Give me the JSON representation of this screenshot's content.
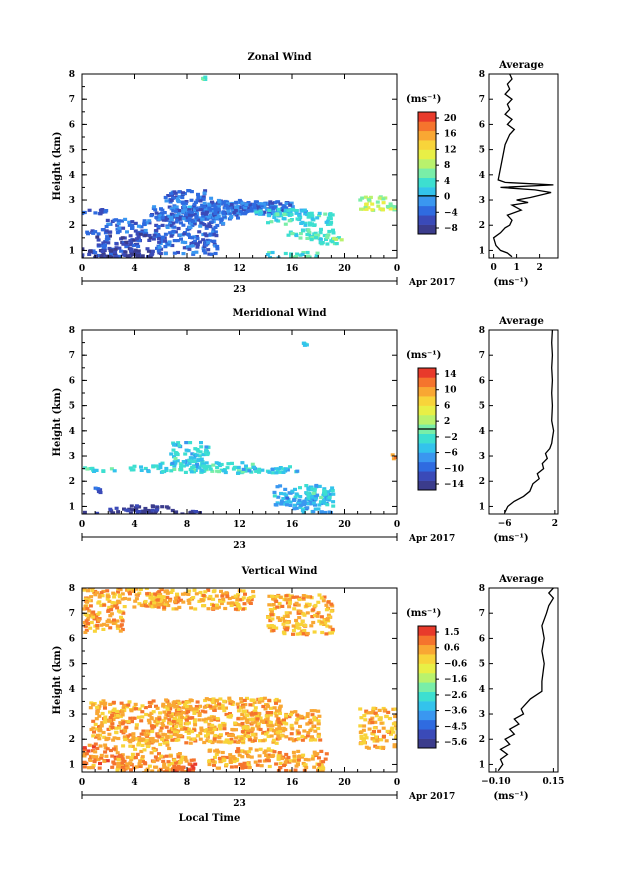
{
  "chart_data": [
    {
      "type": "heatmap",
      "title": "Zonal Wind",
      "ylabel": "Height (km)",
      "xlabel": "",
      "date_label": "23",
      "month_label": "Apr 2017",
      "x_ticks": [
        "0",
        "4",
        "8",
        "12",
        "16",
        "20",
        "0"
      ],
      "x_range": [
        0,
        24
      ],
      "y_ticks": [
        "1",
        "2",
        "3",
        "4",
        "5",
        "6",
        "7",
        "8"
      ],
      "y_range": [
        0.7,
        8.0
      ],
      "colorbar": {
        "unit": "(ms⁻¹)",
        "ticks": [
          "20",
          "16",
          "12",
          "8",
          "4",
          "0",
          "−4",
          "−8"
        ],
        "range": [
          -10,
          22
        ],
        "zero_line": 0
      },
      "cells": [
        [
          0.5,
          2.6,
          -5,
          1.2,
          0.12
        ],
        [
          0.9,
          1.8,
          -5,
          1.2,
          0.1
        ],
        [
          2.5,
          1.2,
          -6,
          1.8,
          0.45
        ],
        [
          2.5,
          0.85,
          -8,
          2.8,
          0.3
        ],
        [
          3.2,
          2.0,
          -4,
          1.8,
          0.3
        ],
        [
          5.0,
          1.6,
          -6,
          1.5,
          0.15
        ],
        [
          7.5,
          2.3,
          -5,
          2.0,
          0.25
        ],
        [
          7.8,
          1.5,
          -4,
          2.5,
          0.6
        ],
        [
          8.0,
          2.85,
          -4,
          1.8,
          0.6
        ],
        [
          8.5,
          2.55,
          -3,
          3.5,
          0.25
        ],
        [
          9.5,
          2.3,
          -4,
          1.5,
          0.2
        ],
        [
          10.0,
          2.8,
          -3,
          3.0,
          0.25
        ],
        [
          11.5,
          2.7,
          -5,
          2.5,
          0.2
        ],
        [
          12.5,
          2.75,
          -4,
          3.0,
          0.25
        ],
        [
          14.0,
          2.8,
          -3,
          2.0,
          0.2
        ],
        [
          15.0,
          2.5,
          2,
          2.0,
          0.2
        ],
        [
          16.5,
          2.3,
          3,
          2.5,
          0.25
        ],
        [
          17.5,
          1.7,
          4,
          2.0,
          0.2
        ],
        [
          18.5,
          1.5,
          5,
          1.2,
          0.2
        ],
        [
          16.0,
          0.85,
          4,
          2.0,
          0.15
        ],
        [
          22.5,
          2.9,
          8,
          1.5,
          0.3
        ],
        [
          9.2,
          7.9,
          5,
          0.2,
          0.05
        ]
      ],
      "profile": {
        "title": "Average",
        "xlabel": "(ms⁻¹)",
        "x_ticks": [
          "0",
          "1",
          "2"
        ],
        "x_range": [
          -0.2,
          2.8
        ],
        "y_range": [
          0.7,
          8.0
        ],
        "points": [
          [
            0.8,
            0.75
          ],
          [
            0.6,
            0.9
          ],
          [
            0.3,
            1.0
          ],
          [
            0.1,
            1.2
          ],
          [
            0.0,
            1.5
          ],
          [
            0.3,
            1.7
          ],
          [
            0.5,
            1.9
          ],
          [
            0.7,
            2.0
          ],
          [
            0.8,
            2.2
          ],
          [
            0.6,
            2.4
          ],
          [
            1.2,
            2.6
          ],
          [
            0.8,
            2.8
          ],
          [
            1.5,
            2.9
          ],
          [
            1.0,
            3.0
          ],
          [
            1.6,
            3.1
          ],
          [
            2.5,
            3.3
          ],
          [
            1.8,
            3.4
          ],
          [
            0.3,
            3.5
          ],
          [
            2.6,
            3.6
          ],
          [
            0.5,
            3.7
          ],
          [
            0.2,
            3.8
          ],
          [
            0.5,
            5.2
          ],
          [
            0.7,
            5.6
          ],
          [
            0.9,
            5.8
          ],
          [
            0.6,
            6.0
          ],
          [
            0.8,
            6.2
          ],
          [
            0.5,
            6.4
          ],
          [
            0.7,
            6.6
          ],
          [
            0.6,
            6.8
          ],
          [
            0.8,
            7.0
          ],
          [
            0.5,
            7.2
          ],
          [
            0.7,
            7.4
          ],
          [
            0.6,
            7.6
          ],
          [
            0.8,
            7.8
          ],
          [
            0.7,
            8.0
          ]
        ]
      }
    },
    {
      "type": "heatmap",
      "title": "Meridional Wind",
      "ylabel": "Height (km)",
      "xlabel": "",
      "date_label": "23",
      "month_label": "Apr 2017",
      "x_ticks": [
        "0",
        "4",
        "8",
        "12",
        "16",
        "20",
        "0"
      ],
      "x_range": [
        0,
        24
      ],
      "y_ticks": [
        "1",
        "2",
        "3",
        "4",
        "5",
        "6",
        "7",
        "8"
      ],
      "y_range": [
        0.7,
        8.0
      ],
      "colorbar": {
        "unit": "(ms⁻¹)",
        "ticks": [
          "14",
          "10",
          "6",
          "2",
          "−2",
          "−6",
          "−10",
          "−14"
        ],
        "range": [
          -16,
          16
        ],
        "zero_line": 0
      },
      "cells": [
        [
          1.0,
          2.5,
          -3,
          1.5,
          0.1
        ],
        [
          4.5,
          2.55,
          -4,
          1.0,
          0.12
        ],
        [
          7.5,
          2.6,
          -3,
          2.0,
          0.2
        ],
        [
          8.0,
          3.1,
          -4,
          1.5,
          0.5
        ],
        [
          10.5,
          2.6,
          -3,
          2.5,
          0.2
        ],
        [
          14.0,
          2.5,
          -4,
          2.5,
          0.15
        ],
        [
          16.5,
          1.5,
          -6,
          2.0,
          0.4
        ],
        [
          17.5,
          1.2,
          -6,
          1.5,
          0.4
        ],
        [
          18.0,
          1.6,
          -3,
          1.0,
          0.2
        ],
        [
          4.5,
          0.95,
          -14,
          2.5,
          0.15
        ],
        [
          6.5,
          0.8,
          -14,
          2.5,
          0.12
        ],
        [
          0.5,
          0.75,
          -14,
          1.0,
          0.08
        ],
        [
          1.2,
          1.7,
          -10,
          0.5,
          0.1
        ],
        [
          23.8,
          3.0,
          10,
          0.3,
          0.15
        ],
        [
          16.8,
          7.5,
          -4,
          0.2,
          0.05
        ]
      ],
      "profile": {
        "title": "Average",
        "xlabel": "(ms⁻¹)",
        "x_ticks": [
          "−6",
          "2"
        ],
        "x_range": [
          -8.5,
          2.5
        ],
        "y_range": [
          0.7,
          8.0
        ],
        "points": [
          [
            -6.0,
            0.75
          ],
          [
            -5.5,
            1.0
          ],
          [
            -4.5,
            1.2
          ],
          [
            -3.0,
            1.4
          ],
          [
            -2.0,
            1.6
          ],
          [
            -1.5,
            1.9
          ],
          [
            -0.5,
            2.1
          ],
          [
            -0.8,
            2.3
          ],
          [
            0.2,
            2.5
          ],
          [
            0.0,
            2.7
          ],
          [
            0.8,
            2.9
          ],
          [
            0.5,
            3.1
          ],
          [
            1.2,
            3.3
          ],
          [
            1.5,
            3.5
          ],
          [
            1.6,
            3.7
          ],
          [
            1.8,
            4.0
          ],
          [
            1.5,
            4.4
          ],
          [
            1.6,
            5.0
          ],
          [
            1.5,
            5.5
          ],
          [
            1.6,
            6.0
          ],
          [
            1.5,
            6.5
          ],
          [
            1.6,
            7.0
          ],
          [
            1.5,
            7.5
          ],
          [
            1.6,
            8.0
          ]
        ]
      }
    },
    {
      "type": "heatmap",
      "title": "Vertical Wind",
      "ylabel": "Height (km)",
      "xlabel": "Local Time",
      "date_label": "23",
      "month_label": "Apr 2017",
      "x_ticks": [
        "0",
        "4",
        "8",
        "12",
        "16",
        "20",
        "0"
      ],
      "x_range": [
        0,
        24
      ],
      "y_ticks": [
        "1",
        "2",
        "3",
        "4",
        "5",
        "6",
        "7",
        "8"
      ],
      "y_range": [
        0.7,
        8.0
      ],
      "colorbar": {
        "unit": "(ms⁻¹)",
        "ticks": [
          "1.5",
          "0.6",
          "−0.6",
          "−1.6",
          "−2.6",
          "−3.6",
          "−4.5",
          "−5.6"
        ],
        "range": [
          -6.0,
          2.0
        ],
        "zero_line": null
      },
      "cells": [
        [
          3.0,
          7.7,
          0.3,
          3.0,
          0.4
        ],
        [
          9.0,
          7.6,
          0.3,
          4.0,
          0.4
        ],
        [
          1.5,
          6.8,
          0.5,
          1.5,
          0.5
        ],
        [
          16.5,
          7.0,
          0.3,
          2.5,
          0.8
        ],
        [
          4.0,
          2.8,
          0.5,
          3.5,
          0.8
        ],
        [
          10.5,
          2.8,
          0.3,
          4.5,
          0.9
        ],
        [
          15.0,
          2.6,
          0.4,
          3.0,
          0.6
        ],
        [
          22.5,
          2.5,
          0.3,
          1.5,
          0.8
        ],
        [
          1.5,
          1.4,
          0.8,
          1.5,
          0.5
        ],
        [
          5.5,
          1.1,
          0.6,
          3.0,
          0.4
        ],
        [
          12.0,
          1.3,
          0.4,
          2.5,
          0.4
        ],
        [
          16.5,
          1.2,
          0.5,
          2.0,
          0.4
        ],
        [
          7.0,
          0.85,
          1.2,
          1.2,
          0.15
        ],
        [
          8.2,
          1.0,
          1.4,
          0.3,
          0.2
        ],
        [
          5.0,
          1.8,
          0.2,
          1.5,
          0.3
        ]
      ],
      "profile": {
        "title": "Average",
        "xlabel": "(ms⁻¹)",
        "x_ticks": [
          "−0.10",
          "0.15"
        ],
        "x_range": [
          -0.13,
          0.17
        ],
        "y_range": [
          0.7,
          8.0
        ],
        "points": [
          [
            -0.09,
            0.75
          ],
          [
            -0.07,
            1.0
          ],
          [
            -0.08,
            1.2
          ],
          [
            -0.05,
            1.4
          ],
          [
            -0.08,
            1.6
          ],
          [
            -0.04,
            1.8
          ],
          [
            -0.06,
            2.0
          ],
          [
            -0.02,
            2.2
          ],
          [
            -0.04,
            2.4
          ],
          [
            0.0,
            2.6
          ],
          [
            -0.02,
            2.8
          ],
          [
            0.02,
            3.0
          ],
          [
            0.01,
            3.2
          ],
          [
            0.03,
            3.4
          ],
          [
            0.05,
            3.6
          ],
          [
            0.1,
            3.9
          ],
          [
            0.1,
            4.3
          ],
          [
            0.11,
            5.0
          ],
          [
            0.1,
            5.5
          ],
          [
            0.11,
            6.0
          ],
          [
            0.1,
            6.5
          ],
          [
            0.12,
            7.0
          ],
          [
            0.13,
            7.3
          ],
          [
            0.15,
            7.6
          ],
          [
            0.13,
            7.8
          ],
          [
            0.15,
            8.0
          ]
        ]
      }
    }
  ]
}
